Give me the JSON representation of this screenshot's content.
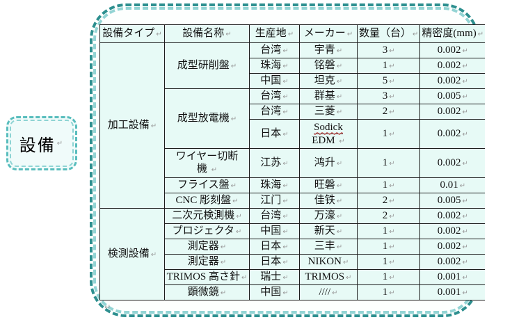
{
  "label": {
    "text": "設備"
  },
  "formatting_mark": "↵",
  "colors": {
    "shape_border_dark_teal": "#2d8f8f",
    "shape_border_light_teal": "#93d4d4",
    "cell_background": "#e7faf6",
    "table_line": "#1c1c1c",
    "spellcheck_underline": "#cc3333",
    "formatting_mark_gray": "#999999"
  },
  "table": {
    "headers": [
      "設備タイプ",
      "設備名称",
      "生産地",
      "メーカー",
      "数量（台）",
      "精密度(mm)"
    ],
    "row_groups": {
      "processing": "加工設備",
      "inspection": "検測設備"
    },
    "equipment_names": {
      "grinder": "成型研削盤",
      "edm": "成型放電機",
      "wire_cut": [
        "ワイヤー切断",
        "機"
      ],
      "milling": "フライス盤",
      "cnc": "CNC 彫刻盤",
      "cmm2d": "二次元検測機",
      "projector": "プロジェクタ",
      "measure": "測定器",
      "trimos": "TRIMOS 高さ針",
      "microscope": "顕微鏡"
    },
    "rows": [
      [
        "台湾",
        "宇青",
        "3",
        "0.002"
      ],
      [
        "珠海",
        "铭磐",
        "1",
        "0.002"
      ],
      [
        "中国",
        "坦克",
        "5",
        "0.002"
      ],
      [
        "台湾",
        "群基",
        "3",
        "0.005"
      ],
      [
        "台湾",
        "三菱",
        "2",
        "0.002"
      ],
      [
        "日本",
        [
          "Sodick",
          "EDM"
        ],
        "1",
        "0.002"
      ],
      [
        "江苏",
        "鸿升",
        "1",
        "0.002"
      ],
      [
        "珠海",
        "旺磐",
        "1",
        "0.01"
      ],
      [
        "江门",
        "佳铁",
        "2",
        "0.005"
      ],
      [
        "台湾",
        "万濠",
        "2",
        "0.002"
      ],
      [
        "中国",
        "新天",
        "1",
        "0.002"
      ],
      [
        "日本",
        "三丰",
        "1",
        "0.002"
      ],
      [
        "日本",
        "NIKON",
        "1",
        "0.002"
      ],
      [
        "瑞士",
        "TRIMOS",
        "1",
        "0.001"
      ],
      [
        "中国",
        "////",
        "1",
        "0.001"
      ]
    ]
  }
}
